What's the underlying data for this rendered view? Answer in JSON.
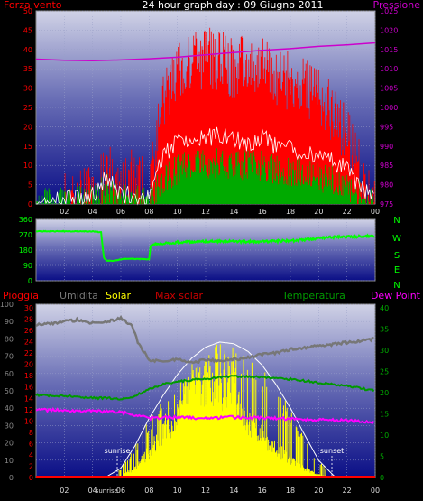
{
  "header": {
    "title": "24 hour graph day : 09 Giugno 2011",
    "left_label": "Forza vento",
    "right_label": "Pressione"
  },
  "colors": {
    "wind": "#ff0000",
    "gust": "#ffffff",
    "wind_avg": "#00aa00",
    "pressure": "#cc00cc",
    "direction": "#00ff00",
    "humidity": "#777777",
    "solar": "#ffff00",
    "max_solar": "#ffffff",
    "temperature": "#009900",
    "dew_point": "#ff00ff",
    "rain": "#ff0000",
    "solar_label": "#ffff00",
    "max_solar_label": "#cc0000"
  },
  "chart_data": [
    {
      "type": "line",
      "name": "wind-pressure",
      "x_ticks": [
        "02",
        "04",
        "06",
        "08",
        "10",
        "12",
        "14",
        "16",
        "18",
        "20",
        "22",
        "00"
      ],
      "y_left_ticks": [
        "0",
        "5",
        "10",
        "15",
        "20",
        "25",
        "30",
        "35",
        "40",
        "45",
        "50"
      ],
      "y_right_ticks": [
        "975",
        "980",
        "985",
        "990",
        "995",
        "1000",
        "1005",
        "1010",
        "1015",
        "1020",
        "1025"
      ],
      "ylim_left": [
        0,
        50
      ],
      "ylim_right": [
        975,
        1025
      ],
      "series": [
        {
          "name": "Forza vento",
          "hours": [
            0,
            2,
            3,
            4,
            4.5,
            5,
            6,
            7,
            8,
            9,
            10,
            11,
            12,
            13,
            14,
            15,
            16,
            17,
            18,
            19,
            20,
            21,
            22,
            23,
            23.5,
            24
          ],
          "values": [
            0,
            0,
            1,
            3,
            5,
            8,
            4,
            7,
            2,
            28,
            34,
            36,
            38,
            37,
            35,
            36,
            35,
            33,
            32,
            30,
            28,
            24,
            18,
            8,
            3,
            1
          ]
        },
        {
          "name": "",
          "hours": [
            0,
            4,
            5,
            6,
            8,
            9,
            10,
            11,
            12,
            13,
            14,
            15,
            16,
            17,
            18,
            19,
            20,
            21,
            22,
            23,
            24
          ],
          "values": [
            0,
            2,
            7,
            3,
            1,
            13,
            16,
            17,
            17,
            18,
            17,
            16,
            17,
            15,
            14,
            13,
            12,
            11,
            9,
            4,
            1
          ]
        },
        {
          "name": "",
          "hours": [
            0,
            4,
            5,
            6,
            8,
            9,
            10,
            11,
            12,
            13,
            14,
            15,
            16,
            17,
            18,
            19,
            20,
            21,
            22,
            23,
            24
          ],
          "values": [
            0,
            1,
            4,
            2,
            0,
            6,
            9,
            10,
            10,
            11,
            10,
            10,
            10,
            9,
            8,
            8,
            7,
            6,
            5,
            2,
            0
          ]
        },
        {
          "name": "Pressione",
          "hours": [
            0,
            2,
            4,
            6,
            8,
            10,
            12,
            14,
            16,
            18,
            20,
            22,
            24
          ],
          "values": [
            1012.5,
            1012.2,
            1012.1,
            1012.3,
            1012.6,
            1013.0,
            1013.6,
            1014.2,
            1014.8,
            1015.2,
            1015.8,
            1016.2,
            1016.7
          ]
        }
      ]
    },
    {
      "type": "line",
      "name": "wind-direction",
      "x_ticks": [
        "02",
        "04",
        "06",
        "08",
        "10",
        "12",
        "14",
        "16",
        "18",
        "20",
        "22",
        "00"
      ],
      "y_left_ticks": [
        "0",
        "90",
        "180",
        "270",
        "360"
      ],
      "y_right_ticks": [
        "N",
        "W",
        "S",
        "E",
        "N"
      ],
      "ylim": [
        0,
        360
      ],
      "series": [
        {
          "name": "direction",
          "hours": [
            0,
            1,
            2,
            3,
            4,
            4.6,
            4.8,
            5,
            5.5,
            6,
            6.5,
            7,
            7.5,
            8,
            8.1,
            8.3,
            9,
            10,
            11,
            12,
            13,
            14,
            15,
            16,
            17,
            18,
            19,
            20,
            21,
            22,
            23,
            24
          ],
          "values": [
            290,
            290,
            290,
            290,
            289,
            285,
            135,
            118,
            118,
            125,
            130,
            128,
            127,
            125,
            205,
            215,
            218,
            225,
            228,
            230,
            230,
            232,
            228,
            230,
            232,
            235,
            240,
            250,
            255,
            258,
            260,
            262
          ]
        }
      ]
    },
    {
      "type": "line",
      "name": "temp-solar",
      "x_ticks": [
        "02",
        "04",
        "sunrise",
        "06",
        "08",
        "10",
        "12",
        "14",
        "16",
        "18",
        "20",
        "22",
        "00"
      ],
      "y_left_ticks": [
        "0",
        "10",
        "20",
        "30",
        "40",
        "50",
        "60",
        "70",
        "80",
        "90",
        "100"
      ],
      "y_mid_ticks": [
        "0",
        "2",
        "4",
        "6",
        "8",
        "10",
        "12",
        "14",
        "16",
        "18",
        "20",
        "22",
        "24",
        "26",
        "28",
        "30"
      ],
      "y_right_ticks": [
        "0",
        "5",
        "10",
        "15",
        "20",
        "25",
        "30",
        "35",
        "40"
      ],
      "legend": [
        "Pioggia",
        "Umidita",
        "Solar",
        "Max solar",
        "Temperatura",
        "Dew Point"
      ],
      "annotations": {
        "sunrise": "sunrise",
        "sunset": "sunset"
      },
      "series": [
        {
          "name": "Umidita",
          "hours": [
            0,
            1,
            2,
            3,
            4,
            5,
            6,
            6.8,
            7.2,
            7.6,
            8,
            9,
            10,
            11,
            12,
            13,
            14,
            15,
            16,
            17,
            18,
            19,
            20,
            21,
            22,
            23,
            24
          ],
          "values": [
            88,
            89,
            90,
            91,
            89,
            90,
            92,
            88,
            78,
            73,
            68,
            67,
            68,
            66,
            68,
            67,
            68,
            69,
            71,
            72,
            74,
            75,
            76,
            77,
            78,
            79,
            80
          ]
        },
        {
          "name": "Temperatura",
          "hours": [
            0,
            2,
            4,
            6,
            7,
            8,
            9,
            10,
            11,
            12,
            13,
            14,
            15,
            16,
            17,
            18,
            19,
            20,
            21,
            22,
            23,
            24
          ],
          "values": [
            19.5,
            19.2,
            18.8,
            18.6,
            19.2,
            20.8,
            22.0,
            22.6,
            23.0,
            23.3,
            23.6,
            23.8,
            23.8,
            23.6,
            23.4,
            23.2,
            22.8,
            22.4,
            22.0,
            21.6,
            21.0,
            20.5
          ]
        },
        {
          "name": "Dew Point",
          "hours": [
            0,
            2,
            4,
            6,
            7,
            8,
            9,
            10,
            12,
            14,
            16,
            18,
            20,
            22,
            24
          ],
          "values": [
            16.0,
            15.8,
            15.6,
            15.4,
            14.6,
            14.0,
            14.1,
            14.2,
            14.0,
            14.2,
            14.0,
            13.8,
            13.6,
            13.4,
            13.1
          ]
        },
        {
          "name": "Max solar",
          "hours": [
            4.9,
            6,
            7,
            8,
            9,
            10,
            11,
            12,
            13,
            14,
            15,
            16,
            17,
            18,
            19,
            20,
            21.2
          ],
          "values": [
            0,
            55,
            185,
            345,
            480,
            600,
            695,
            760,
            790,
            780,
            735,
            655,
            540,
            405,
            250,
            100,
            0
          ]
        },
        {
          "name": "Solar",
          "hours": [
            6,
            7,
            8,
            9,
            10,
            11,
            12,
            13,
            14,
            15,
            16,
            17,
            18,
            19,
            20,
            21
          ],
          "values": [
            10,
            60,
            180,
            320,
            440,
            580,
            650,
            600,
            540,
            380,
            280,
            200,
            120,
            60,
            20,
            0
          ]
        }
      ]
    }
  ]
}
